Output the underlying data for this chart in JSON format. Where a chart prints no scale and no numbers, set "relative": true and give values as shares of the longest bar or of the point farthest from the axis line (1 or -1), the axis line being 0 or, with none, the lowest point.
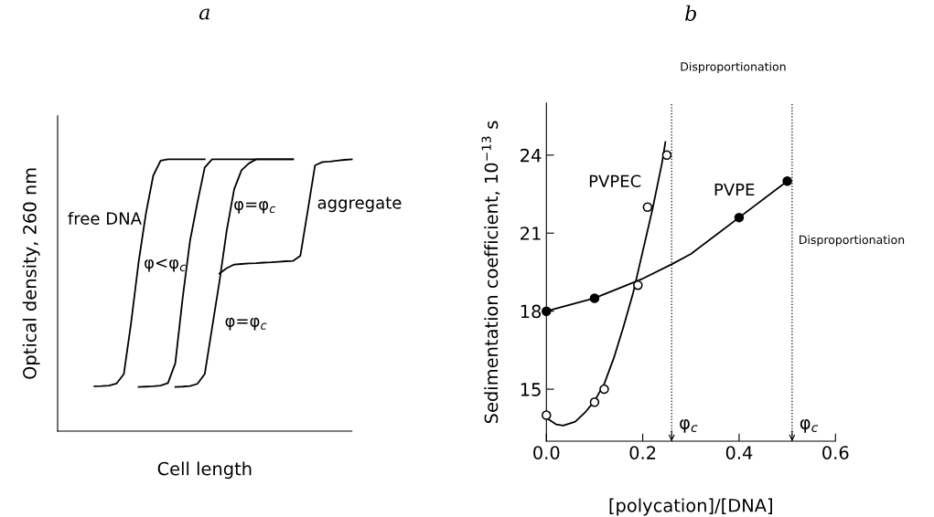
{
  "chart_data": [
    {
      "type": "line",
      "title": "a",
      "xlabel": "Cell length",
      "ylabel": "Optical density, 260 nm",
      "relative": true,
      "tick_labels": false,
      "marker": "none",
      "line_style": "solid",
      "categories": [
        null,
        null,
        null,
        null,
        null,
        null,
        null,
        null,
        null,
        null,
        null,
        null,
        null,
        null,
        null,
        null,
        null,
        null,
        null,
        null,
        null,
        null,
        null,
        null,
        null,
        null,
        null,
        null,
        null,
        null,
        null,
        null,
        null,
        null,
        null,
        null,
        null,
        null,
        null,
        null,
        null
      ],
      "series": [
        {
          "color": "#000000",
          "values": [
            null,
            null,
            null,
            null,
            null,
            0.165,
            0.166,
            0.168,
            0.175,
            0.21,
            0.4,
            0.62,
            0.8,
            0.94,
            0.995,
            1.0,
            1.0,
            1.0,
            1.0,
            1.0,
            1.0,
            null,
            null,
            null,
            null,
            null,
            null,
            null,
            null,
            null,
            null,
            null,
            null,
            null,
            null,
            null,
            null,
            null,
            null,
            null,
            null
          ]
        },
        {
          "color": "#000000",
          "values": [
            null,
            null,
            null,
            null,
            null,
            null,
            null,
            null,
            null,
            null,
            null,
            0.163,
            0.164,
            0.165,
            0.168,
            0.177,
            0.25,
            0.49,
            0.7,
            0.84,
            0.97,
            1.0,
            1.0,
            1.0,
            1.0,
            1.0,
            1.0,
            1.0,
            1.0,
            1.0,
            1.0,
            1.0,
            1.0,
            null,
            null,
            null,
            null,
            null,
            null,
            null,
            null
          ]
        },
        {
          "color": "#000000",
          "values": [
            null,
            null,
            null,
            null,
            null,
            null,
            null,
            null,
            null,
            null,
            null,
            null,
            null,
            null,
            null,
            null,
            0.163,
            0.164,
            0.166,
            0.174,
            0.21,
            0.38,
            0.55,
            0.74,
            0.89,
            0.96,
            0.985,
            1.0,
            1.0,
            1.0,
            1.0,
            1.0,
            1.0,
            null,
            null,
            null,
            null,
            null,
            null,
            null,
            null
          ]
        },
        {
          "color": "#000000",
          "values": [
            null,
            null,
            null,
            null,
            null,
            null,
            null,
            null,
            null,
            null,
            null,
            null,
            null,
            null,
            null,
            null,
            null,
            null,
            null,
            null,
            null,
            null,
            0.58,
            0.6,
            0.613,
            0.615,
            0.617,
            0.618,
            0.62,
            0.621,
            0.623,
            0.625,
            0.626,
            0.645,
            0.81,
            0.978,
            0.99,
            0.992,
            0.995,
            0.998,
            1.0
          ]
        }
      ],
      "annotations": [
        "free DNA",
        "φ<φ$_{c}$",
        "φ=φ$_{c}$",
        "aggregate",
        "φ=φ$_{c}$"
      ]
    },
    {
      "type": "scatter",
      "title": "b",
      "xlabel": "[polycation]/[DNA]",
      "ylabel": "Sedimentation coefficient, 10$^{−13}$ s",
      "xlim": [
        0,
        0.6
      ],
      "ylim": [
        13,
        26
      ],
      "xticks": [
        {
          "value": 0,
          "label": "0.0"
        },
        0.2,
        0.4,
        0.6
      ],
      "yticks": [
        15,
        18,
        21,
        24
      ],
      "series": [
        {
          "type": "scatter",
          "marker": "circle",
          "color": "#ffffff",
          "x": [
            0,
            0.1,
            0.12,
            0.19,
            0.21,
            0.25
          ],
          "values": [
            14.0,
            14.5,
            15.0,
            19.0,
            22.0,
            24.0
          ]
        },
        {
          "type": "line",
          "marker": "none",
          "color": "#000000",
          "x": [
            0,
            0.02,
            0.035,
            0.06,
            0.08,
            0.1,
            0.12,
            0.14,
            0.16,
            0.18,
            0.2,
            0.22,
            0.24,
            0.247
          ],
          "values": [
            13.9,
            13.65,
            13.6,
            13.75,
            14.1,
            14.55,
            15.2,
            16.2,
            17.4,
            18.7,
            20.3,
            21.9,
            23.7,
            24.5
          ]
        },
        {
          "type": "scatter",
          "marker": "circle",
          "color": "#000000",
          "x": [
            0,
            0.1,
            0.4,
            0.5
          ],
          "values": [
            18.0,
            18.5,
            21.6,
            23.0
          ]
        },
        {
          "type": "line",
          "marker": "none",
          "color": "#000000",
          "x": [
            0,
            0.1,
            0.2,
            0.26,
            0.3,
            0.4,
            0.5
          ],
          "values": [
            18.0,
            18.5,
            19.25,
            19.8,
            20.2,
            21.6,
            23.0
          ]
        }
      ],
      "ref_lines": [
        {
          "axis": "x",
          "value": 0.26,
          "label": "φ$_{c}$",
          "line_style": "dotted",
          "color": "#000000"
        },
        {
          "axis": "x",
          "value": 0.51,
          "label": "φ$_{c}$",
          "line_style": "dotted",
          "color": "#000000"
        }
      ],
      "annotations": [
        "PVPEC",
        "PVPE",
        "Disproportionation",
        "Disproportionation"
      ]
    }
  ]
}
